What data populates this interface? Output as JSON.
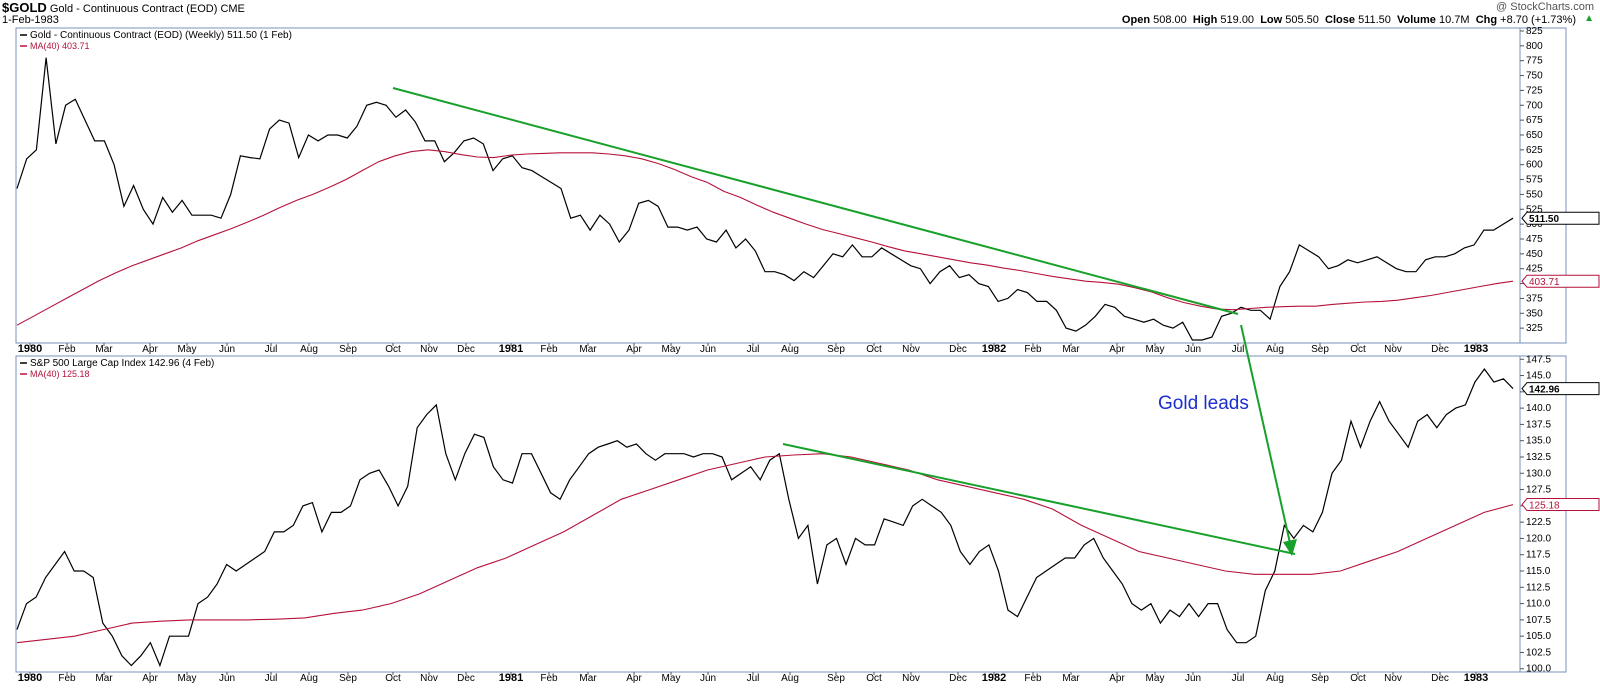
{
  "header": {
    "symbol": "$GOLD",
    "name": "Gold - Continuous Contract (EOD)",
    "exchange": "CME",
    "date": "1-Feb-1983",
    "watermark": "@ StockCharts.com",
    "quote": {
      "open_label": "Open",
      "open": "508.00",
      "high_label": "High",
      "high": "519.00",
      "low_label": "Low",
      "low": "505.50",
      "close_label": "Close",
      "close": "511.50",
      "volume_label": "Volume",
      "volume": "10.7M",
      "chg_label": "Chg",
      "chg": "+8.70 (+1.73%)"
    }
  },
  "annotation": "Gold leads",
  "colors": {
    "price": "#000000",
    "ma": "#b5123a",
    "trendline": "#17a02a",
    "annotation": "#1a2fd0",
    "panel_border": "#7a93b8",
    "grid": "#d6e0ec"
  },
  "chart_data": [
    {
      "type": "line",
      "title": "Gold - Continuous Contract (EOD) (Weekly) 511.50 (1 Feb)",
      "ma_label": "MA(40) 403.71",
      "last_price_label": "511.50",
      "last_ma_label": "403.71",
      "ylim": [
        300,
        830
      ],
      "y_ticks": [
        325,
        350,
        375,
        400,
        425,
        450,
        475,
        500,
        525,
        550,
        575,
        600,
        625,
        650,
        675,
        700,
        725,
        750,
        775,
        800,
        825
      ],
      "x_labels": [
        "1980",
        "Feb",
        "Mar",
        "Apr",
        "May",
        "Jun",
        "Jul",
        "Aug",
        "Sep",
        "Oct",
        "Nov",
        "Dec",
        "1981",
        "Feb",
        "Mar",
        "Apr",
        "May",
        "Jun",
        "Jul",
        "Aug",
        "Sep",
        "Oct",
        "Nov",
        "Dec",
        "1982",
        "Feb",
        "Mar",
        "Apr",
        "May",
        "Jun",
        "Jul",
        "Aug",
        "Sep",
        "Oct",
        "Nov",
        "Dec",
        "1983"
      ],
      "series": [
        {
          "name": "Gold - Continuous Contract (EOD) (Weekly)",
          "values": [
            560,
            610,
            625,
            780,
            635,
            700,
            710,
            675,
            640,
            640,
            600,
            530,
            565,
            525,
            500,
            545,
            520,
            540,
            515,
            515,
            515,
            510,
            550,
            615,
            612,
            610,
            660,
            675,
            670,
            612,
            650,
            640,
            650,
            650,
            645,
            665,
            700,
            705,
            700,
            680,
            692,
            672,
            640,
            640,
            605,
            620,
            640,
            645,
            635,
            590,
            610,
            615,
            595,
            590,
            580,
            570,
            560,
            510,
            515,
            490,
            515,
            500,
            470,
            490,
            535,
            540,
            530,
            495,
            495,
            490,
            495,
            475,
            470,
            490,
            460,
            475,
            455,
            420,
            420,
            415,
            405,
            420,
            410,
            430,
            450,
            445,
            465,
            445,
            445,
            460,
            450,
            440,
            430,
            425,
            400,
            420,
            430,
            410,
            415,
            400,
            395,
            370,
            375,
            390,
            385,
            370,
            370,
            355,
            325,
            320,
            330,
            345,
            365,
            360,
            345,
            340,
            335,
            340,
            330,
            325,
            335,
            305,
            305,
            310,
            345,
            350,
            360,
            355,
            355,
            340,
            395,
            420,
            465,
            455,
            445,
            425,
            430,
            440,
            435,
            440,
            445,
            435,
            425,
            420,
            420,
            440,
            445,
            445,
            450,
            460,
            465,
            490,
            490,
            500,
            510
          ]
        },
        {
          "name": "MA(40)",
          "values": [
            330,
            345,
            360,
            375,
            390,
            405,
            418,
            430,
            440,
            450,
            460,
            472,
            482,
            492,
            503,
            515,
            528,
            540,
            550,
            562,
            575,
            590,
            605,
            615,
            622,
            625,
            622,
            617,
            613,
            612,
            616,
            618,
            619,
            620,
            620,
            620,
            618,
            615,
            610,
            602,
            592,
            580,
            570,
            555,
            545,
            532,
            520,
            510,
            500,
            491,
            484,
            477,
            470,
            462,
            455,
            450,
            445,
            440,
            435,
            431,
            426,
            422,
            417,
            412,
            408,
            404,
            402,
            399,
            393,
            386,
            376,
            368,
            362,
            357,
            356,
            358,
            360,
            361,
            362,
            362,
            365,
            367,
            369,
            370,
            372,
            376,
            380,
            385,
            390,
            395,
            400,
            404
          ]
        }
      ]
    },
    {
      "type": "line",
      "title": "S&P 500 Large Cap Index 142.96 (4 Feb)",
      "ma_label": "MA(40) 125.18",
      "last_price_label": "142.96",
      "last_ma_label": "125.18",
      "ylim": [
        99.5,
        148.0
      ],
      "y_ticks": [
        100.0,
        102.5,
        105.0,
        107.5,
        110.0,
        112.5,
        115.0,
        117.5,
        120.0,
        122.5,
        125.0,
        127.5,
        130.0,
        132.5,
        135.0,
        137.5,
        140.0,
        142.5,
        145.0,
        147.5
      ],
      "x_labels": [
        "1980",
        "Feb",
        "Mar",
        "Apr",
        "May",
        "Jun",
        "Jul",
        "Aug",
        "Sep",
        "Oct",
        "Nov",
        "Dec",
        "1981",
        "Feb",
        "Mar",
        "Apr",
        "May",
        "Jun",
        "Jul",
        "Aug",
        "Sep",
        "Oct",
        "Nov",
        "Dec",
        "1982",
        "Feb",
        "Mar",
        "Apr",
        "May",
        "Jun",
        "Jul",
        "Aug",
        "Sep",
        "Oct",
        "Nov",
        "Dec",
        "1983"
      ],
      "series": [
        {
          "name": "S&P 500 Large Cap Index",
          "values": [
            106,
            110,
            111,
            114,
            116,
            118,
            115,
            115,
            114,
            107,
            105,
            102,
            100.5,
            102,
            104,
            100.5,
            105,
            105,
            105,
            110,
            111,
            113,
            116,
            115,
            116,
            117,
            118,
            121,
            121,
            122,
            125,
            125.5,
            121,
            124,
            124,
            125,
            129,
            130,
            130.5,
            128,
            125,
            128,
            137,
            139,
            140.5,
            133,
            129,
            133,
            136,
            135.5,
            131,
            129,
            128.5,
            133,
            133,
            130,
            127,
            126,
            129,
            131,
            133,
            134,
            134.5,
            135,
            134,
            134.5,
            133,
            132,
            133,
            133,
            133,
            132.5,
            133,
            133,
            132.5,
            129,
            130,
            131,
            129,
            132,
            133,
            126,
            120,
            122,
            113,
            119,
            120,
            116,
            120,
            119,
            119,
            123,
            122.5,
            122,
            125,
            126,
            125,
            124,
            122,
            118,
            116,
            118,
            119,
            115,
            109,
            108,
            111,
            114,
            115,
            116,
            117,
            117,
            119,
            120,
            117,
            115,
            113,
            110,
            109,
            110,
            107,
            109,
            108,
            110,
            108,
            110,
            110,
            106,
            104,
            104,
            105,
            112,
            115,
            122,
            120,
            122,
            121,
            124,
            130,
            132,
            138,
            134,
            138,
            141,
            138,
            136,
            134,
            138,
            139,
            137,
            139,
            140,
            140.5,
            144,
            146,
            144,
            144.5,
            143
          ]
        },
        {
          "name": "MA(40)",
          "values": [
            104,
            104.5,
            105,
            106,
            107,
            107.3,
            107.5,
            107.5,
            107.5,
            107.6,
            107.8,
            108.5,
            109,
            110,
            111.5,
            113.5,
            115.5,
            117,
            119,
            121,
            123.5,
            126,
            127.5,
            129,
            130.5,
            131.5,
            132.5,
            132.8,
            133,
            132.5,
            131.5,
            130.5,
            129,
            128,
            127,
            126,
            124.5,
            122,
            120,
            118,
            117,
            116,
            115,
            114.5,
            114.5,
            114.5,
            115,
            116.5,
            118,
            120,
            122,
            124,
            125.2
          ]
        }
      ]
    }
  ]
}
